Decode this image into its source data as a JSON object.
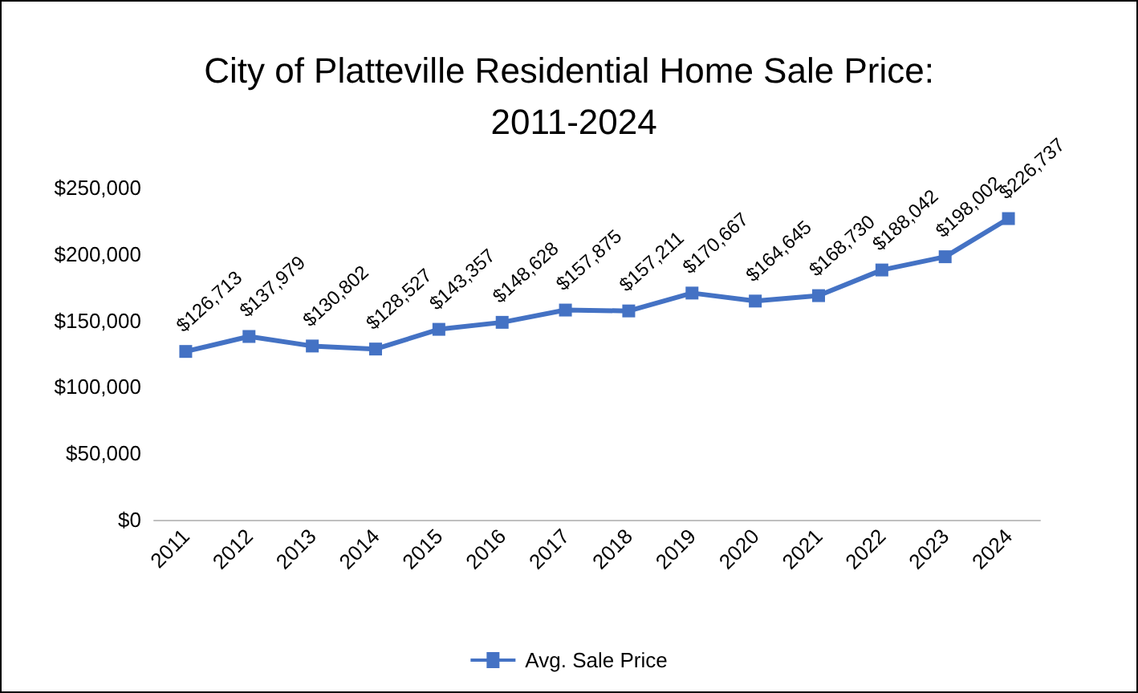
{
  "chart_data": {
    "type": "line",
    "title": "City of Platteville Residential Home Sale Price: 2011-2024",
    "categories": [
      "2011",
      "2012",
      "2013",
      "2014",
      "2015",
      "2016",
      "2017",
      "2018",
      "2019",
      "2020",
      "2021",
      "2022",
      "2023",
      "2024"
    ],
    "series": [
      {
        "name": "Avg. Sale Price",
        "color": "#4472c4",
        "values": [
          126713,
          137979,
          130802,
          128527,
          143357,
          148628,
          157875,
          157211,
          170667,
          164645,
          168730,
          188042,
          198002,
          226737
        ],
        "value_labels": [
          "$126,713",
          "$137,979",
          "$130,802",
          "$128,527",
          "$143,357",
          "$148,628",
          "$157,875",
          "$157,211",
          "$170,667",
          "$164,645",
          "$168,730",
          "$188,042",
          "$198,002",
          "$226,737"
        ]
      }
    ],
    "ylim": [
      0,
      250000
    ],
    "yticks": [
      {
        "value": 0,
        "label": "$0"
      },
      {
        "value": 50000,
        "label": "$50,000"
      },
      {
        "value": 100000,
        "label": "$100,000"
      },
      {
        "value": 150000,
        "label": "$150,000"
      },
      {
        "value": 200000,
        "label": "$200,000"
      },
      {
        "value": 250000,
        "label": "$250,000"
      }
    ],
    "grid": false,
    "legend": "bottom",
    "marker": "square",
    "line_style": "solid"
  }
}
